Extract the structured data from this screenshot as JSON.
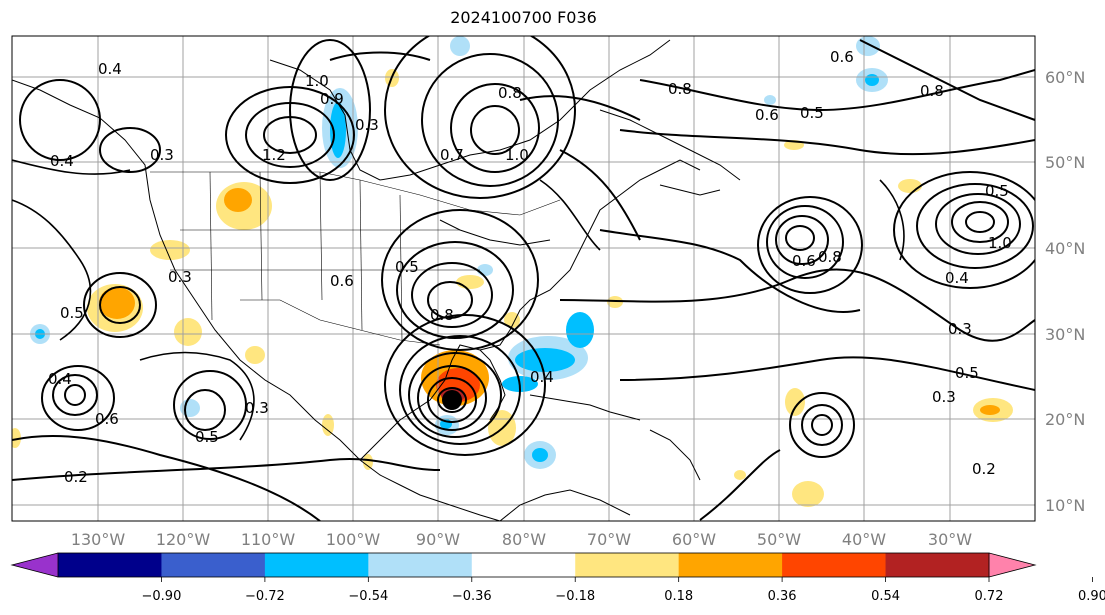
{
  "title": "2024100700 F036",
  "lat_labels": [
    "60°N",
    "50°N",
    "40°N",
    "30°N",
    "20°N",
    "10°N"
  ],
  "lon_labels": [
    "130°W",
    "120°W",
    "110°W",
    "100°W",
    "90°W",
    "80°W",
    "70°W",
    "60°W",
    "50°W",
    "40°W",
    "30°W"
  ],
  "contour_labels": [
    "0.4",
    "1.0",
    "0.8",
    "0.8",
    "0.6",
    "0.5",
    "0.9",
    "0.8",
    "0.3",
    "1.2",
    "0.3",
    "0.7",
    "1.0",
    "0.4",
    "0.5",
    "0.6",
    "0.4",
    "0.3",
    "0.6",
    "0.5",
    "0.3",
    "0.8",
    "0.5",
    "0.4",
    "0.3",
    "0.4",
    "0.3",
    "0.5",
    "0.6",
    "0.2",
    "0.5",
    "0.2",
    "1.0",
    "0.8",
    "0.6"
  ],
  "colorbar": {
    "ticks": [
      "−0.90",
      "−0.72",
      "−0.54",
      "−0.36",
      "−0.18",
      "0.18",
      "0.36",
      "0.54",
      "0.72",
      "0.90"
    ],
    "colors": [
      "#9932cc",
      "#00008b",
      "#3a5fcd",
      "#00bfff",
      "#b0e0f8",
      "#ffffff",
      "#ffe680",
      "#ffa500",
      "#ff4500",
      "#b22222",
      "#ff82ab"
    ]
  },
  "fill_colors": {
    "neg_light": "#b0e0f8",
    "neg_mid": "#00bfff",
    "pos_light": "#ffe680",
    "pos_mid": "#ffa500",
    "pos_high": "#ff4500",
    "pos_max": "#b22222"
  }
}
